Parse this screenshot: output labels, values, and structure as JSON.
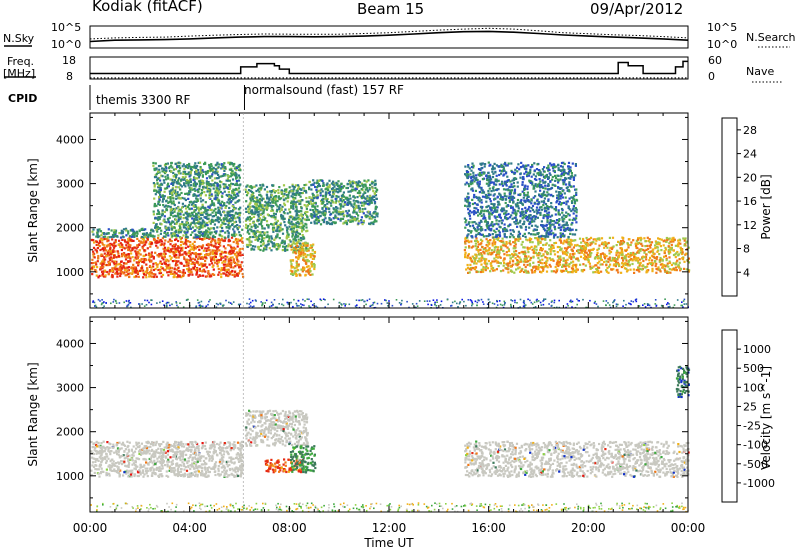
{
  "header": {
    "site": "Kodiak (fitACF)",
    "beam": "Beam 15",
    "date": "09/Apr/2012"
  },
  "side_labels": {
    "nsky": "N.Sky",
    "freq": "Freq.",
    "freq_unit": "[MHz]",
    "cpid": "CPID",
    "nsearch": "N.Search",
    "nave": "Nave",
    "nsky_ticks": [
      "10^5",
      "10^0"
    ],
    "nsearch_ticks": [
      "10^5",
      "10^0"
    ],
    "freq_ticks": [
      "18",
      "8"
    ],
    "nave_ticks": [
      "60",
      "0"
    ]
  },
  "cpid_segments": [
    {
      "label": "themis 3300 RF",
      "start_hour": 0.0
    },
    {
      "label": "normalsound (fast) 157 RF",
      "start_hour": 6.2
    }
  ],
  "chart_data": [
    {
      "type": "line",
      "name": "noise-panel",
      "x_range": [
        0,
        24
      ],
      "series": [
        {
          "name": "N.Sky",
          "style": "solid",
          "x": [
            0,
            1,
            2,
            3,
            4,
            5,
            6,
            7,
            8,
            9,
            10,
            11,
            12,
            13,
            14,
            15,
            16,
            17,
            18,
            19,
            20,
            21,
            22,
            23,
            24
          ],
          "y": [
            30,
            60,
            70,
            80,
            120,
            200,
            300,
            400,
            380,
            350,
            380,
            500,
            800,
            1500,
            3000,
            5000,
            6000,
            4000,
            2000,
            900,
            500,
            300,
            200,
            120,
            60
          ]
        },
        {
          "name": "N.Search",
          "style": "dotted",
          "x": [
            0,
            1,
            2,
            3,
            4,
            5,
            6,
            7,
            8,
            9,
            10,
            11,
            12,
            13,
            14,
            15,
            16,
            17,
            18,
            19,
            20,
            21,
            22,
            23,
            24
          ],
          "y": [
            120,
            200,
            250,
            300,
            500,
            800,
            1200,
            1500,
            1400,
            1300,
            1400,
            2000,
            3000,
            6000,
            12000,
            20000,
            30000,
            20000,
            8000,
            3000,
            1800,
            1000,
            700,
            400,
            200
          ]
        }
      ]
    },
    {
      "type": "line",
      "name": "freq-nave-panel",
      "x_range": [
        0,
        24
      ],
      "series": [
        {
          "name": "Freq.",
          "style": "solid",
          "x": [
            0,
            6.0,
            6.05,
            6.7,
            7.4,
            7.6,
            8.0,
            21.0,
            21.2,
            21.6,
            22.2,
            23.5,
            23.8,
            24
          ],
          "y": [
            10.5,
            10.5,
            13.5,
            15.0,
            14.0,
            12.5,
            10.5,
            10.5,
            15.5,
            14.0,
            10.5,
            13.5,
            16.0,
            16.0
          ]
        },
        {
          "name": "Nave",
          "style": "dotted",
          "x": [
            0,
            24
          ],
          "y": [
            3,
            3
          ]
        }
      ]
    },
    {
      "type": "heatmap",
      "name": "power",
      "title": "Power [dB]",
      "xlabel": "Time UT",
      "ylabel": "Slant Range [km]",
      "x_range_hours": [
        0,
        24
      ],
      "ylim": [
        180,
        4600
      ],
      "xticks": [
        "00:00",
        "04:00",
        "08:00",
        "12:00",
        "16:00",
        "20:00",
        "00:00"
      ],
      "yticks": [
        1000,
        2000,
        3000,
        4000
      ],
      "colorbar_ticks": [
        4,
        8,
        12,
        16,
        20,
        24,
        28
      ],
      "colorbar_range": [
        0,
        30
      ],
      "colors": [
        "#0a14e6",
        "#2a4ec8",
        "#2f7a88",
        "#3c9a58",
        "#a0c84a",
        "#f0b018",
        "#f07818",
        "#e62a14",
        "#e61410"
      ],
      "regions": [
        {
          "t0": 0.0,
          "t1": 6.1,
          "r0": 900,
          "r1": 1800,
          "value": 24
        },
        {
          "t0": 0.0,
          "t1": 6.1,
          "r0": 1800,
          "r1": 2000,
          "value": 9
        },
        {
          "t0": 2.5,
          "t1": 6.0,
          "r0": 2000,
          "r1": 3500,
          "value": 10
        },
        {
          "t0": 6.2,
          "t1": 8.7,
          "r0": 1500,
          "r1": 3000,
          "value": 11
        },
        {
          "t0": 8.0,
          "t1": 9.0,
          "r0": 900,
          "r1": 1700,
          "value": 18
        },
        {
          "t0": 8.7,
          "t1": 11.5,
          "r0": 2100,
          "r1": 3100,
          "value": 10
        },
        {
          "t0": 15.0,
          "t1": 24.0,
          "r0": 1000,
          "r1": 1800,
          "value": 19
        },
        {
          "t0": 15.0,
          "t1": 19.5,
          "r0": 1800,
          "r1": 3500,
          "value": 7
        }
      ]
    },
    {
      "type": "heatmap",
      "name": "velocity",
      "title": "Velocity [m s^-1]",
      "xlabel": "Time UT",
      "ylabel": "Slant Range [km]",
      "x_range_hours": [
        0,
        24
      ],
      "ylim": [
        180,
        4600
      ],
      "xticks": [
        "00:00",
        "04:00",
        "08:00",
        "12:00",
        "16:00",
        "20:00",
        "00:00"
      ],
      "yticks": [
        1000,
        2000,
        3000,
        4000
      ],
      "colorbar_ticks": [
        1000,
        500,
        100,
        25,
        -25,
        -100,
        -500,
        -1000
      ],
      "colors": [
        "#1030c8",
        "#3c7a5a",
        "#3ca83c",
        "#8cd244",
        "#c8c8c0",
        "#f0b018",
        "#f07818",
        "#e62a14",
        "#e61410"
      ],
      "regions": [
        {
          "t0": 0.0,
          "t1": 6.1,
          "r0": 1000,
          "r1": 1800,
          "value": 0
        },
        {
          "t0": 6.2,
          "t1": 8.7,
          "r0": 1700,
          "r1": 2500,
          "value": 0
        },
        {
          "t0": 7.0,
          "t1": 8.5,
          "r0": 1100,
          "r1": 1400,
          "value": -300
        },
        {
          "t0": 8.0,
          "t1": 9.0,
          "r0": 1100,
          "r1": 1700,
          "value": 300
        },
        {
          "t0": 15.0,
          "t1": 24.0,
          "r0": 1000,
          "r1": 1800,
          "value": 0
        },
        {
          "t0": 23.5,
          "t1": 24.0,
          "r0": 2800,
          "r1": 3500,
          "value": 500
        }
      ]
    }
  ]
}
